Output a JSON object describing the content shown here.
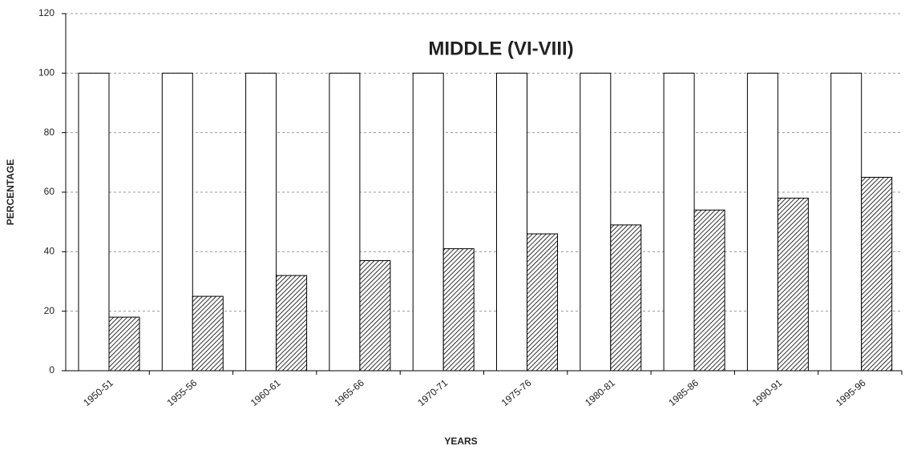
{
  "chart_data": {
    "type": "bar",
    "title": "MIDDLE (VI-VIII)",
    "x_label": "YEARS",
    "y_label": "PERCENTAGE",
    "categories": [
      "1950-51",
      "1955-56",
      "1960-61",
      "1965-66",
      "1970-71",
      "1975-76",
      "1980-81",
      "1985-86",
      "1990-91",
      "1995-96"
    ],
    "series": [
      {
        "color": "#ffffff",
        "values": [
          100,
          100,
          100,
          100,
          100,
          100,
          100,
          100,
          100,
          100
        ]
      },
      {
        "color": "#000000",
        "values": [
          18,
          25,
          32,
          37,
          41,
          46,
          49,
          54,
          58,
          65
        ]
      }
    ],
    "ylim": [
      0,
      120
    ],
    "yticks": [
      0,
      20,
      40,
      60,
      80,
      100,
      120
    ],
    "grid": true
  }
}
